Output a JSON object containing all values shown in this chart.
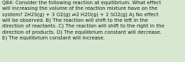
{
  "lines": [
    "Q84: Consider the following reaction at equilibrium. What effect",
    "will increasing the volume of the reaction mixture have on the",
    "system? 2H2S(g) + 3 O2(g) ⇌2 H2O(g) + 2 SO2(g) A) No effect",
    "will be observed. B) The reaction will shift to the left in the",
    "direction of reactants. C) The reaction will shift to the right in the",
    "direction of products. D) The equilibrium constant will decrease.",
    "E) The equilibrium constant will increase."
  ],
  "background_color": "#d8e8d0",
  "text_color": "#1a1a1a",
  "font_size": 5.05,
  "fig_width": 2.61,
  "fig_height": 0.88,
  "dpi": 100
}
